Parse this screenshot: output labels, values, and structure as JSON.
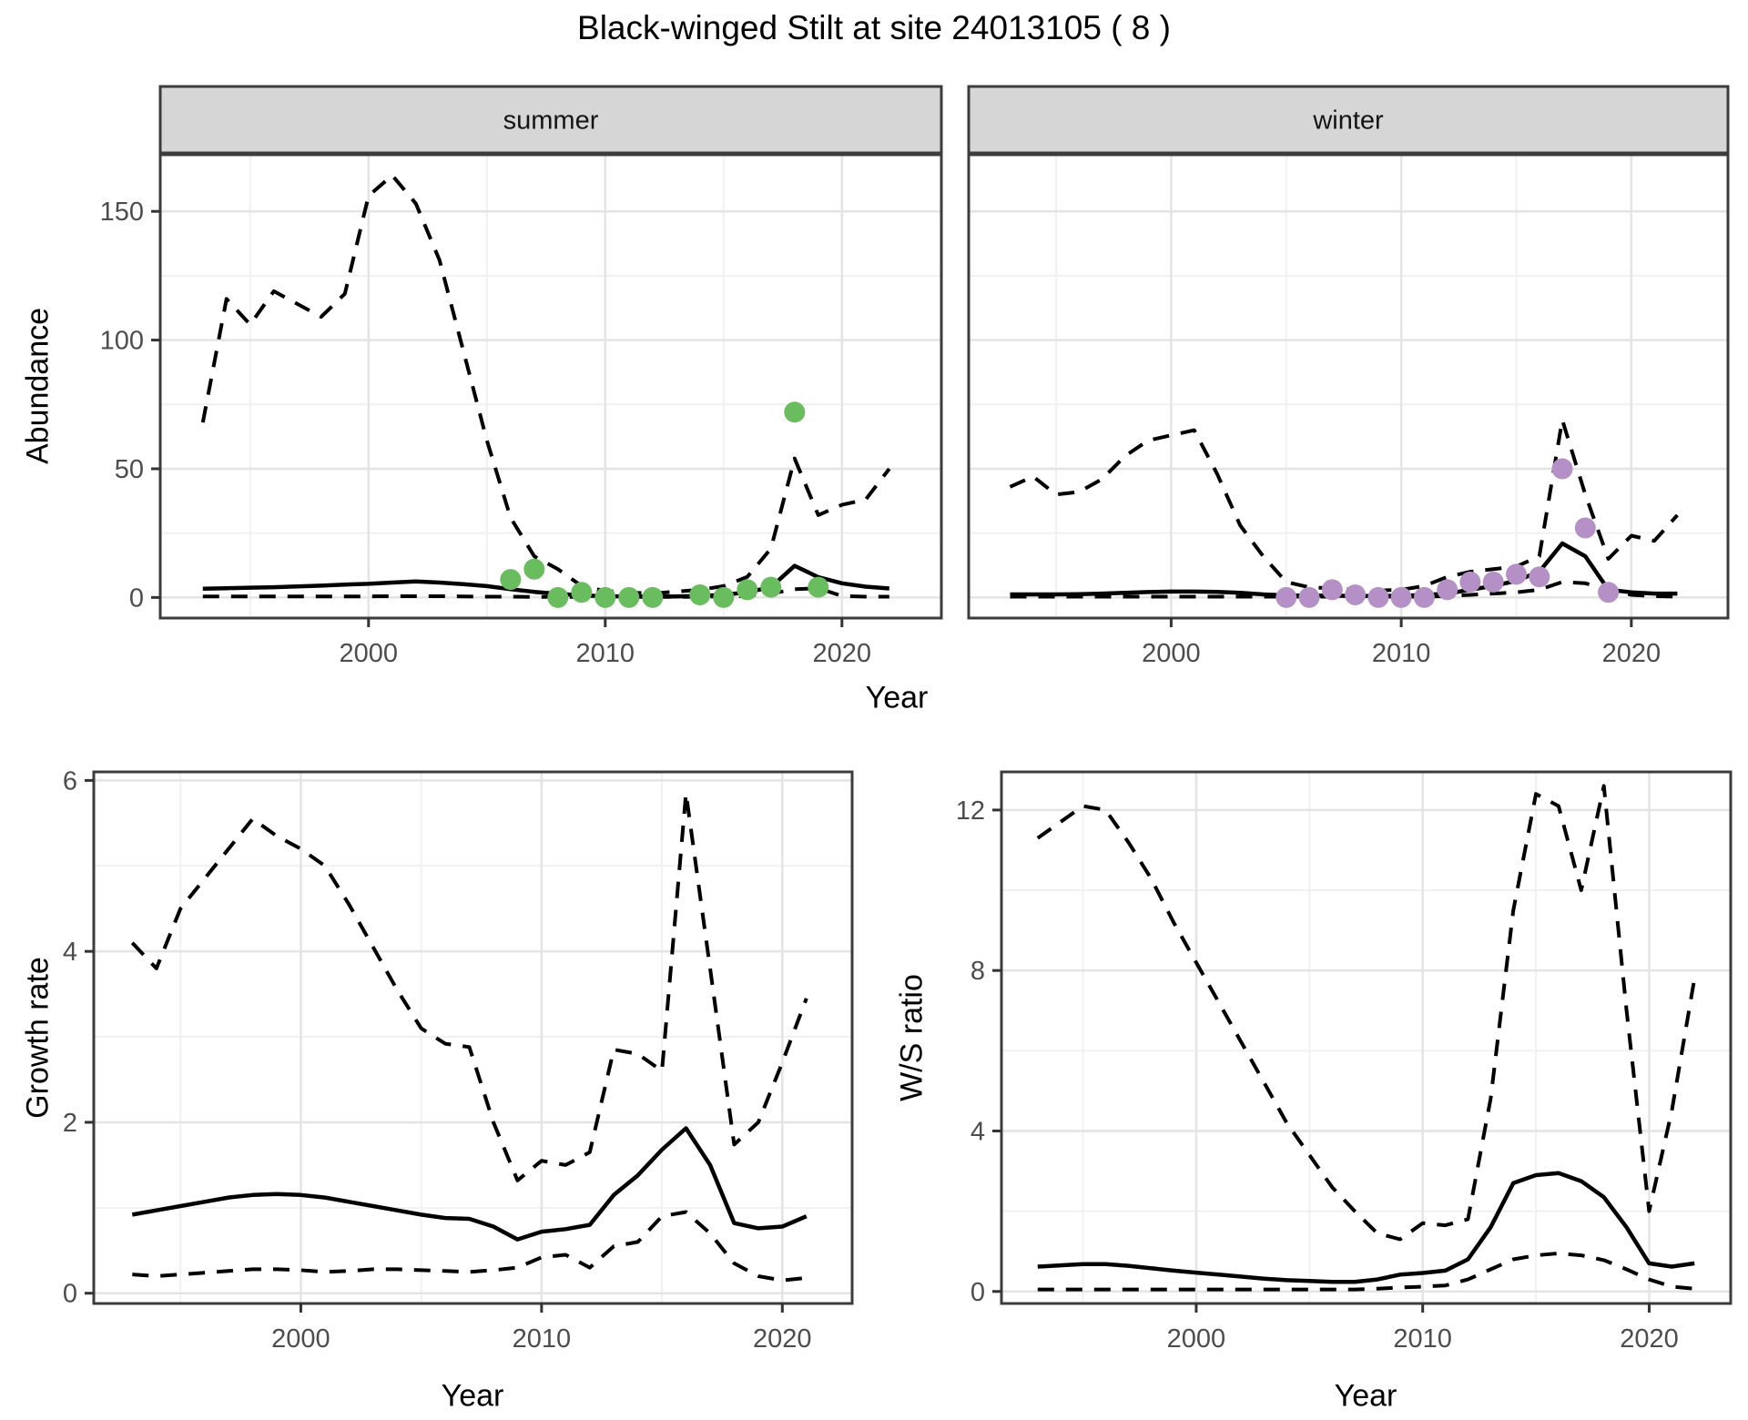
{
  "title": "Black-winged Stilt at site 24013105 ( 8 )",
  "colors": {
    "summer_points": "#6ABD5E",
    "winter_points": "#B590C6",
    "line": "#000000",
    "panel_border": "#3C3C3C",
    "strip_fill": "#D6D6D6",
    "grid_major": "#E4E4E4",
    "grid_minor": "#F1F1F1",
    "tick_text": "#4D4D4D",
    "tick_mark": "#333333"
  },
  "chart_data": [
    {
      "id": "abundance_summer",
      "type": "line",
      "facet_label": "summer",
      "xlabel": "Year",
      "ylabel": "Abundance",
      "xlim": [
        1991.2,
        2024.2
      ],
      "ylim": [
        -8,
        172
      ],
      "xticks": [
        2000,
        2010,
        2020
      ],
      "yticks": [
        0,
        50,
        100,
        150
      ],
      "xticks_minor": [
        1995,
        2005,
        2015
      ],
      "yticks_minor": [
        25,
        75,
        125
      ],
      "grid": true,
      "x": [
        1993,
        1994,
        1995,
        1996,
        1997,
        1998,
        1999,
        2000,
        2001,
        2002,
        2003,
        2004,
        2005,
        2006,
        2007,
        2008,
        2009,
        2010,
        2011,
        2012,
        2013,
        2014,
        2015,
        2016,
        2017,
        2018,
        2019,
        2020,
        2021,
        2022
      ],
      "series": [
        {
          "name": "upper_ci",
          "style": "dashed",
          "values": [
            68,
            116,
            106,
            119,
            114,
            109,
            118,
            156,
            164,
            153,
            131,
            96,
            61,
            31,
            16,
            11,
            4.5,
            2.5,
            2,
            1.5,
            2.3,
            3,
            4.4,
            8,
            19,
            54,
            32,
            36,
            38,
            50
          ]
        },
        {
          "name": "median",
          "style": "solid",
          "values": [
            3.4,
            3.6,
            3.8,
            4.0,
            4.3,
            4.6,
            5.0,
            5.3,
            5.8,
            6.2,
            5.8,
            5.2,
            4.4,
            3.2,
            2.2,
            1.4,
            0.8,
            0.5,
            0.4,
            0.35,
            0.4,
            0.6,
            1.0,
            2.0,
            4.0,
            12.3,
            7.9,
            5.5,
            4.2,
            3.5
          ]
        },
        {
          "name": "lower_ci",
          "style": "dashed",
          "values": [
            0.4,
            0.4,
            0.4,
            0.4,
            0.4,
            0.4,
            0.4,
            0.4,
            0.5,
            0.5,
            0.5,
            0.4,
            0.3,
            0.3,
            0.2,
            0.2,
            0.2,
            0.2,
            0.2,
            0.2,
            0.2,
            0.3,
            0.4,
            0.6,
            1.5,
            3.2,
            3.6,
            0.6,
            0.3,
            0.3
          ]
        }
      ],
      "points": {
        "name": "observed_counts_summer",
        "color_key": "summer_points",
        "x": [
          2006,
          2007,
          2008,
          2009,
          2010,
          2011,
          2012,
          2014,
          2015,
          2016,
          2017,
          2018,
          2019
        ],
        "y": [
          7,
          11,
          0,
          2,
          0,
          0,
          0,
          1,
          0,
          3,
          4,
          72,
          4
        ]
      }
    },
    {
      "id": "abundance_winter",
      "type": "line",
      "facet_label": "winter",
      "xlabel": "Year",
      "ylabel": "Abundance",
      "xlim": [
        1991.2,
        2024.2
      ],
      "ylim": [
        -8,
        172
      ],
      "xticks": [
        2000,
        2010,
        2020
      ],
      "yticks": [
        0,
        50,
        100,
        150
      ],
      "xticks_minor": [
        1995,
        2005,
        2015
      ],
      "yticks_minor": [
        25,
        75,
        125
      ],
      "grid": true,
      "x": [
        1993,
        1994,
        1995,
        1996,
        1997,
        1998,
        1999,
        2000,
        2001,
        2002,
        2003,
        2004,
        2005,
        2006,
        2007,
        2008,
        2009,
        2010,
        2011,
        2012,
        2013,
        2014,
        2015,
        2016,
        2017,
        2018,
        2019,
        2020,
        2021,
        2022
      ],
      "series": [
        {
          "name": "upper_ci",
          "style": "dashed",
          "values": [
            43,
            47,
            40,
            41,
            46,
            55,
            61,
            63,
            65,
            48,
            28,
            16,
            6,
            4,
            3.5,
            3,
            2.7,
            3,
            4.5,
            8,
            10,
            11,
            12,
            16,
            69,
            40,
            15,
            24,
            22,
            32
          ]
        },
        {
          "name": "median",
          "style": "solid",
          "values": [
            1.2,
            1.2,
            1.2,
            1.3,
            1.5,
            1.8,
            2.1,
            2.3,
            2.3,
            2.2,
            1.8,
            1.2,
            0.8,
            0.7,
            0.7,
            0.6,
            0.6,
            0.7,
            0.9,
            1.5,
            3.0,
            4.5,
            6.5,
            10,
            21,
            16,
            3,
            2,
            1.5,
            1.5
          ]
        },
        {
          "name": "lower_ci",
          "style": "dashed",
          "values": [
            0.3,
            0.3,
            0.3,
            0.3,
            0.3,
            0.3,
            0.3,
            0.3,
            0.3,
            0.3,
            0.3,
            0.3,
            0.3,
            0.3,
            0.3,
            0.3,
            0.3,
            0.3,
            0.3,
            0.5,
            1,
            1.5,
            2,
            3,
            6,
            5.5,
            3,
            1,
            0.5,
            0.3
          ]
        }
      ],
      "points": {
        "name": "observed_counts_winter",
        "color_key": "winter_points",
        "x": [
          2005,
          2006,
          2007,
          2008,
          2009,
          2010,
          2011,
          2012,
          2013,
          2014,
          2015,
          2016,
          2017,
          2018,
          2019
        ],
        "y": [
          0,
          0,
          3,
          1,
          0,
          0,
          0,
          3,
          6,
          6,
          9,
          8,
          50,
          27,
          2
        ]
      }
    },
    {
      "id": "growth_rate",
      "type": "line",
      "facet_label": "",
      "xlabel": "Year",
      "ylabel": "Growth rate",
      "xlim": [
        1991.4,
        2022.9
      ],
      "ylim": [
        -0.12,
        6.1
      ],
      "xticks": [
        2000,
        2010,
        2020
      ],
      "yticks": [
        0,
        2,
        4,
        6
      ],
      "xticks_minor": [
        1995,
        2005,
        2015
      ],
      "yticks_minor": [
        1,
        3,
        5
      ],
      "grid": true,
      "x": [
        1993,
        1994,
        1995,
        1996,
        1997,
        1998,
        1999,
        2000,
        2001,
        2002,
        2003,
        2004,
        2005,
        2006,
        2007,
        2008,
        2009,
        2010,
        2011,
        2012,
        2013,
        2014,
        2015,
        2016,
        2017,
        2018,
        2019,
        2020,
        2021
      ],
      "series": [
        {
          "name": "upper_ci",
          "style": "dashed",
          "values": [
            4.1,
            3.8,
            4.5,
            4.85,
            5.2,
            5.55,
            5.35,
            5.2,
            5.0,
            4.55,
            4.05,
            3.55,
            3.1,
            2.92,
            2.88,
            2.0,
            1.32,
            1.55,
            1.5,
            1.65,
            2.85,
            2.8,
            2.6,
            5.85,
            3.8,
            1.74,
            2.0,
            2.7,
            3.45
          ]
        },
        {
          "name": "median",
          "style": "solid",
          "values": [
            0.92,
            0.97,
            1.02,
            1.07,
            1.12,
            1.15,
            1.16,
            1.15,
            1.12,
            1.07,
            1.02,
            0.97,
            0.92,
            0.88,
            0.87,
            0.78,
            0.63,
            0.72,
            0.75,
            0.8,
            1.15,
            1.38,
            1.68,
            1.93,
            1.5,
            0.82,
            0.76,
            0.78,
            0.9
          ]
        },
        {
          "name": "lower_ci",
          "style": "dashed",
          "values": [
            0.22,
            0.2,
            0.22,
            0.24,
            0.26,
            0.28,
            0.28,
            0.27,
            0.25,
            0.26,
            0.28,
            0.28,
            0.27,
            0.26,
            0.25,
            0.27,
            0.3,
            0.42,
            0.45,
            0.3,
            0.55,
            0.6,
            0.9,
            0.95,
            0.7,
            0.35,
            0.2,
            0.15,
            0.18
          ]
        }
      ],
      "points": null
    },
    {
      "id": "ws_ratio",
      "type": "line",
      "facet_label": "",
      "xlabel": "Year",
      "ylabel": "W/S ratio",
      "xlim": [
        1991.4,
        2023.6
      ],
      "ylim": [
        -0.3,
        12.95
      ],
      "xticks": [
        2000,
        2010,
        2020
      ],
      "yticks": [
        0,
        4,
        8,
        12
      ],
      "xticks_minor": [
        1995,
        2005,
        2015
      ],
      "yticks_minor": [
        2,
        6,
        10
      ],
      "grid": true,
      "x": [
        1993,
        1994,
        1995,
        1996,
        1997,
        1998,
        1999,
        2000,
        2001,
        2002,
        2003,
        2004,
        2005,
        2006,
        2007,
        2008,
        2009,
        2010,
        2011,
        2012,
        2013,
        2014,
        2015,
        2016,
        2017,
        2018,
        2019,
        2020,
        2021,
        2022
      ],
      "series": [
        {
          "name": "upper_ci",
          "style": "dashed",
          "values": [
            11.3,
            11.7,
            12.1,
            12.0,
            11.2,
            10.3,
            9.2,
            8.2,
            7.2,
            6.2,
            5.2,
            4.2,
            3.4,
            2.6,
            2.0,
            1.45,
            1.3,
            1.7,
            1.65,
            1.8,
            4.8,
            9.5,
            12.4,
            12.1,
            10.0,
            12.6,
            7.0,
            2.0,
            4.5,
            7.8
          ]
        },
        {
          "name": "median",
          "style": "solid",
          "values": [
            0.62,
            0.65,
            0.68,
            0.68,
            0.64,
            0.58,
            0.52,
            0.47,
            0.42,
            0.37,
            0.32,
            0.28,
            0.26,
            0.24,
            0.24,
            0.3,
            0.42,
            0.46,
            0.52,
            0.8,
            1.6,
            2.7,
            2.9,
            2.95,
            2.75,
            2.35,
            1.6,
            0.7,
            0.62,
            0.7
          ]
        },
        {
          "name": "lower_ci",
          "style": "dashed",
          "values": [
            0.05,
            0.05,
            0.05,
            0.05,
            0.05,
            0.05,
            0.05,
            0.05,
            0.05,
            0.05,
            0.05,
            0.05,
            0.05,
            0.05,
            0.05,
            0.07,
            0.1,
            0.12,
            0.15,
            0.3,
            0.55,
            0.8,
            0.9,
            0.95,
            0.9,
            0.78,
            0.55,
            0.3,
            0.12,
            0.07
          ]
        }
      ],
      "points": null
    }
  ]
}
